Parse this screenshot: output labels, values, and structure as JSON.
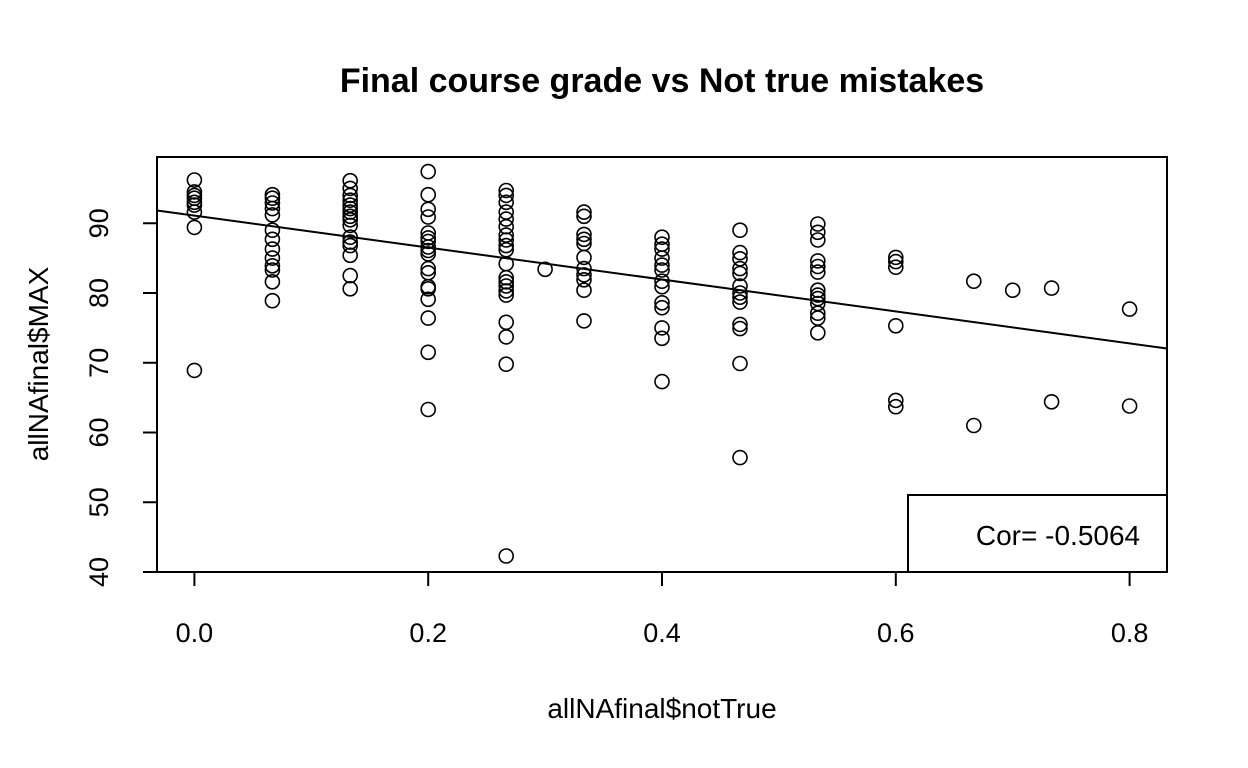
{
  "chart_data": {
    "type": "scatter",
    "title": "Final course grade vs Not true mistakes",
    "xlabel": "allNAfinal$notTrue",
    "ylabel": "allNAfinal$MAX",
    "xlim": [
      -0.032,
      0.832
    ],
    "ylim": [
      40,
      99.5
    ],
    "x_ticks": [
      0.0,
      0.2,
      0.4,
      0.6,
      0.8
    ],
    "x_tick_labels": [
      "0.0",
      "0.2",
      "0.4",
      "0.6",
      "0.8"
    ],
    "y_ticks": [
      40,
      50,
      60,
      70,
      80,
      90
    ],
    "y_tick_labels": [
      "40",
      "50",
      "60",
      "70",
      "80",
      "90"
    ],
    "grid": false,
    "regression_line": {
      "intercept": 91.1,
      "slope": -22.9
    },
    "legend": {
      "position": "bottom-right",
      "text": "Cor= -0.5064"
    },
    "points": [
      [
        0,
        96.2
      ],
      [
        0,
        94.5
      ],
      [
        0,
        94.0
      ],
      [
        0,
        93.6
      ],
      [
        0,
        93.0
      ],
      [
        0,
        92.6
      ],
      [
        0,
        91.6
      ],
      [
        0,
        89.4
      ],
      [
        0,
        68.9
      ],
      [
        0.0667,
        94.1
      ],
      [
        0.0667,
        93.6
      ],
      [
        0.0667,
        92.9
      ],
      [
        0.0667,
        92.1
      ],
      [
        0.0667,
        91.2
      ],
      [
        0.0667,
        89.0
      ],
      [
        0.0667,
        87.7
      ],
      [
        0.0667,
        86.3
      ],
      [
        0.0667,
        85.0
      ],
      [
        0.0667,
        83.9
      ],
      [
        0.0667,
        83.3
      ],
      [
        0.0667,
        81.6
      ],
      [
        0.0667,
        78.9
      ],
      [
        0.1333,
        96.1
      ],
      [
        0.1333,
        95.0
      ],
      [
        0.1333,
        94.0
      ],
      [
        0.1333,
        93.3
      ],
      [
        0.1333,
        92.6
      ],
      [
        0.1333,
        92.1
      ],
      [
        0.1333,
        91.6
      ],
      [
        0.1333,
        91.0
      ],
      [
        0.1333,
        90.5
      ],
      [
        0.1333,
        89.7
      ],
      [
        0.1333,
        88.0
      ],
      [
        0.1333,
        87.3
      ],
      [
        0.1333,
        86.8
      ],
      [
        0.1333,
        85.4
      ],
      [
        0.1333,
        82.5
      ],
      [
        0.1333,
        80.6
      ],
      [
        0.2,
        97.4
      ],
      [
        0.2,
        94.1
      ],
      [
        0.2,
        92.0
      ],
      [
        0.2,
        90.9
      ],
      [
        0.2,
        88.6
      ],
      [
        0.2,
        87.9
      ],
      [
        0.2,
        87.4
      ],
      [
        0.2,
        86.6
      ],
      [
        0.2,
        86.1
      ],
      [
        0.2,
        85.6
      ],
      [
        0.2,
        83.5
      ],
      [
        0.2,
        82.9
      ],
      [
        0.2,
        80.9
      ],
      [
        0.2,
        80.6
      ],
      [
        0.2,
        79.1
      ],
      [
        0.2,
        76.4
      ],
      [
        0.2,
        71.5
      ],
      [
        0.2,
        63.3
      ],
      [
        0.2667,
        94.7
      ],
      [
        0.2667,
        94.0
      ],
      [
        0.2667,
        93.0
      ],
      [
        0.2667,
        91.6
      ],
      [
        0.2667,
        90.6
      ],
      [
        0.2667,
        89.5
      ],
      [
        0.2667,
        88.3
      ],
      [
        0.2667,
        87.6
      ],
      [
        0.2667,
        86.8
      ],
      [
        0.2667,
        86.2
      ],
      [
        0.2667,
        84.2
      ],
      [
        0.2667,
        82.2
      ],
      [
        0.2667,
        81.6
      ],
      [
        0.2667,
        81.0
      ],
      [
        0.2667,
        80.3
      ],
      [
        0.2667,
        79.7
      ],
      [
        0.2667,
        75.8
      ],
      [
        0.2667,
        73.7
      ],
      [
        0.2667,
        69.8
      ],
      [
        0.2667,
        42.3
      ],
      [
        0.3,
        83.4
      ],
      [
        0.3333,
        91.6
      ],
      [
        0.3333,
        91.0
      ],
      [
        0.3333,
        88.4
      ],
      [
        0.3333,
        87.7
      ],
      [
        0.3333,
        87.1
      ],
      [
        0.3333,
        85.1
      ],
      [
        0.3333,
        83.5
      ],
      [
        0.3333,
        82.6
      ],
      [
        0.3333,
        81.9
      ],
      [
        0.3333,
        80.4
      ],
      [
        0.3333,
        76.0
      ],
      [
        0.4,
        88.0
      ],
      [
        0.4,
        87.0
      ],
      [
        0.4,
        86.3
      ],
      [
        0.4,
        85.0
      ],
      [
        0.4,
        84.0
      ],
      [
        0.4,
        83.3
      ],
      [
        0.4,
        81.7
      ],
      [
        0.4,
        80.9
      ],
      [
        0.4,
        78.6
      ],
      [
        0.4,
        77.9
      ],
      [
        0.4,
        75.0
      ],
      [
        0.4,
        73.5
      ],
      [
        0.4,
        67.3
      ],
      [
        0.4667,
        89.0
      ],
      [
        0.4667,
        85.8
      ],
      [
        0.4667,
        84.9
      ],
      [
        0.4667,
        83.5
      ],
      [
        0.4667,
        82.8
      ],
      [
        0.4667,
        81.0
      ],
      [
        0.4667,
        80.0
      ],
      [
        0.4667,
        79.4
      ],
      [
        0.4667,
        78.7
      ],
      [
        0.4667,
        75.5
      ],
      [
        0.4667,
        74.9
      ],
      [
        0.4667,
        69.9
      ],
      [
        0.4667,
        56.4
      ],
      [
        0.5333,
        89.9
      ],
      [
        0.5333,
        88.7
      ],
      [
        0.5333,
        87.6
      ],
      [
        0.5333,
        84.6
      ],
      [
        0.5333,
        83.8
      ],
      [
        0.5333,
        83.0
      ],
      [
        0.5333,
        80.4
      ],
      [
        0.5333,
        79.7
      ],
      [
        0.5333,
        79.2
      ],
      [
        0.5333,
        78.5
      ],
      [
        0.5333,
        77.1
      ],
      [
        0.5333,
        76.4
      ],
      [
        0.5333,
        74.3
      ],
      [
        0.6,
        85.1
      ],
      [
        0.6,
        84.5
      ],
      [
        0.6,
        83.7
      ],
      [
        0.6,
        75.3
      ],
      [
        0.6,
        64.6
      ],
      [
        0.6,
        63.7
      ],
      [
        0.6667,
        81.7
      ],
      [
        0.6667,
        61.0
      ],
      [
        0.7,
        80.4
      ],
      [
        0.7333,
        80.7
      ],
      [
        0.7333,
        64.4
      ],
      [
        0.8,
        77.7
      ],
      [
        0.8,
        63.8
      ]
    ]
  }
}
